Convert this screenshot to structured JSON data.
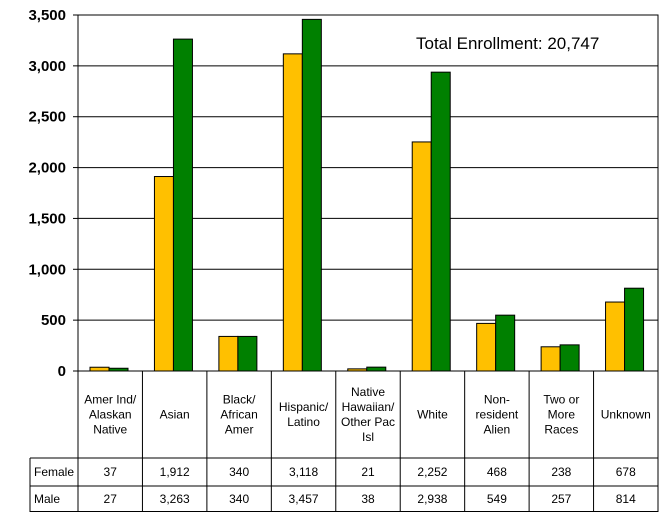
{
  "chart_data": {
    "type": "bar",
    "annotation": "Total Enrollment: 20,747",
    "categories": [
      [
        "Amer Ind/",
        "Alaskan",
        "Native"
      ],
      [
        "Asian"
      ],
      [
        "Black/",
        "African",
        "Amer"
      ],
      [
        "Hispanic/",
        "Latino"
      ],
      [
        "Native",
        "Hawaiian/",
        "Other Pac",
        "Isl"
      ],
      [
        "White"
      ],
      [
        "Non-",
        "resident",
        "Alien"
      ],
      [
        "Two or",
        "More",
        "Races"
      ],
      [
        "Unknown"
      ]
    ],
    "series": [
      {
        "name": "Female",
        "color": "#ffc000",
        "values": [
          37,
          1912,
          340,
          3118,
          21,
          2252,
          468,
          238,
          678
        ],
        "labels": [
          "37",
          "1,912",
          "340",
          "3,118",
          "21",
          "2,252",
          "468",
          "238",
          "678"
        ]
      },
      {
        "name": "Male",
        "color": "#008000",
        "values": [
          27,
          3263,
          340,
          3457,
          38,
          2938,
          549,
          257,
          814
        ],
        "labels": [
          "27",
          "3,263",
          "340",
          "3,457",
          "38",
          "2,938",
          "549",
          "257",
          "814"
        ]
      }
    ],
    "ylim": [
      0,
      3500
    ],
    "yticks": [
      0,
      500,
      1000,
      1500,
      2000,
      2500,
      3000,
      3500
    ],
    "ytick_labels": [
      "0",
      "500",
      "1,000",
      "1,500",
      "2,000",
      "2,500",
      "3,000",
      "3,500"
    ],
    "grid": true,
    "legend": "data-table"
  }
}
